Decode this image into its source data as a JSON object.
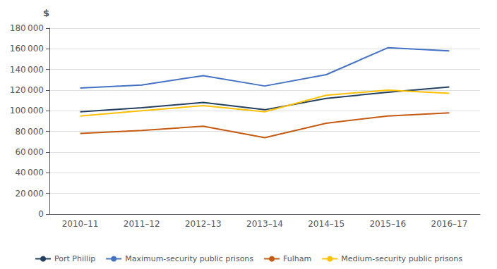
{
  "chart_data": {
    "type": "line",
    "ylabel": "$",
    "categories": [
      "2010–11",
      "2011–12",
      "2012–13",
      "2013–14",
      "2014–15",
      "2015–16",
      "2016–17"
    ],
    "series": [
      {
        "name": "Port Phillip",
        "color": "#243f60",
        "values": [
          99000,
          103000,
          108000,
          101000,
          112000,
          118000,
          123000
        ]
      },
      {
        "name": "Maximum-security public prisons",
        "color": "#4472c4",
        "values": [
          122000,
          125000,
          134000,
          124000,
          135000,
          161000,
          158000
        ]
      },
      {
        "name": "Fulham",
        "color": "#c55a11",
        "values": [
          78000,
          81000,
          85000,
          74000,
          88000,
          95000,
          98000
        ]
      },
      {
        "name": "Medium-security public prisons",
        "color": "#ffc000",
        "values": [
          95000,
          100000,
          105000,
          99000,
          115000,
          120000,
          117000
        ]
      }
    ],
    "ylim": [
      0,
      180000
    ],
    "yticks": [
      0,
      {
        "value": 20000,
        "label": "20 000"
      },
      {
        "value": 40000,
        "label": "40 000"
      },
      {
        "value": 60000,
        "label": "60 000"
      },
      {
        "value": 80000,
        "label": "80 000"
      },
      {
        "value": 100000,
        "label": "100 000"
      },
      {
        "value": 120000,
        "label": "120 000"
      },
      {
        "value": 140000,
        "label": "140 000"
      },
      {
        "value": 160000,
        "label": "160 000"
      },
      {
        "value": 180000,
        "label": "180 000"
      }
    ],
    "grid": true,
    "legend": "bottom"
  }
}
